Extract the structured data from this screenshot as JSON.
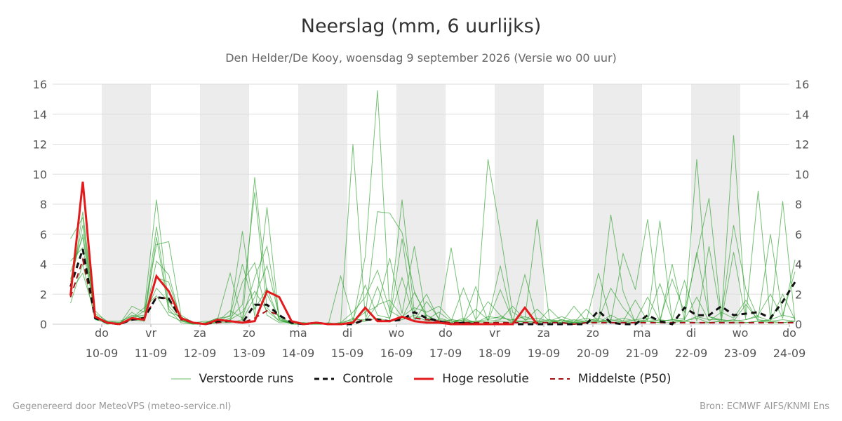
{
  "title": "Neerslag (mm, 6 uurlijks)",
  "subtitle": "Den Helder/De Kooy, woensdag  9 september 2026 (Versie wo 00 uur)",
  "footer": {
    "left": "Gegenereerd door MeteoVPS (meteo-service.nl)",
    "right": "Bron: ECMWF AIFS/KNMI Ens"
  },
  "legend": [
    {
      "label": "Verstoorde runs",
      "color": "#2ca02c",
      "style": "thin"
    },
    {
      "label": "Controle",
      "color": "#111111",
      "style": "dashed"
    },
    {
      "label": "Hoge resolutie",
      "color": "#e31a1c",
      "style": "solid"
    },
    {
      "label": "Middelste (P50)",
      "color": "#a50f15",
      "style": "dashed"
    }
  ],
  "chart_data": {
    "type": "line",
    "x_start": "2026-09-09 06:00",
    "x_step_hours": 6,
    "ylim": [
      0,
      16
    ],
    "yticks": [
      0,
      2,
      4,
      6,
      8,
      10,
      12,
      14,
      16
    ],
    "grid": true,
    "legend_position": "bottom",
    "x_tick_labels": [
      {
        "day": "do",
        "date": "10-09"
      },
      {
        "day": "vr",
        "date": "11-09"
      },
      {
        "day": "za",
        "date": "12-09"
      },
      {
        "day": "zo",
        "date": "13-09"
      },
      {
        "day": "ma",
        "date": "14-09"
      },
      {
        "day": "di",
        "date": "15-09"
      },
      {
        "day": "wo",
        "date": "16-09"
      },
      {
        "day": "do",
        "date": "17-09"
      },
      {
        "day": "vr",
        "date": "18-09"
      },
      {
        "day": "za",
        "date": "19-09"
      },
      {
        "day": "zo",
        "date": "20-09"
      },
      {
        "day": "ma",
        "date": "21-09"
      },
      {
        "day": "di",
        "date": "22-09"
      },
      {
        "day": "wo",
        "date": "23-09"
      },
      {
        "day": "do",
        "date": "24-09"
      }
    ],
    "shaded_weekday_bands": [
      "vr 11-09",
      "zo 13-09",
      "di 15-09",
      "do 17-09",
      "za 19-09",
      "ma 21-09",
      "wo 23-09"
    ],
    "series": [
      {
        "name": "Hoge resolutie",
        "color": "#e31a1c",
        "values": [
          1.9,
          9.5,
          0.5,
          0.1,
          0.0,
          0.4,
          0.3,
          3.2,
          2.2,
          0.4,
          0.1,
          0.0,
          0.3,
          0.2,
          0.1,
          0.2,
          2.2,
          1.8,
          0.2,
          0.0,
          0.1,
          0.0,
          0.0,
          0.1,
          1.1,
          0.2,
          0.2,
          0.5,
          0.2,
          0.1,
          0.1,
          0.0,
          0.0,
          0.0,
          0.0,
          0.0,
          0.0,
          1.1,
          0.0
        ]
      },
      {
        "name": "Controle",
        "color": "#111111",
        "values": [
          2.5,
          5.0,
          0.4,
          0.1,
          0.0,
          0.3,
          0.4,
          1.8,
          1.7,
          0.4,
          0.1,
          0.0,
          0.2,
          0.2,
          0.1,
          1.3,
          1.3,
          0.6,
          0.1,
          0.0,
          0.1,
          0.0,
          0.0,
          0.0,
          0.3,
          0.3,
          0.2,
          0.3,
          0.8,
          0.4,
          0.2,
          0.0,
          0.1,
          0.0,
          0.0,
          0.0,
          0.0,
          0.0,
          0.0,
          0.0,
          0.0,
          0.0,
          0.0,
          0.9,
          0.1,
          0.0,
          0.0,
          0.6,
          0.2,
          0.0,
          1.1,
          0.6,
          0.6,
          1.2,
          0.6,
          0.7,
          0.8,
          0.4,
          1.5,
          2.8,
          0.0,
          0.0,
          0.0
        ]
      },
      {
        "name": "Middelste (P50)",
        "color": "#a50f15",
        "values": [
          1.8,
          4.3,
          0.5,
          0.1,
          0.0,
          0.3,
          0.4,
          1.8,
          1.7,
          0.3,
          0.1,
          0.0,
          0.1,
          0.2,
          0.1,
          0.4,
          0.9,
          0.6,
          0.1,
          0.0,
          0.1,
          0.0,
          0.0,
          0.1,
          0.3,
          0.3,
          0.2,
          0.4,
          0.4,
          0.3,
          0.2,
          0.1,
          0.1,
          0.1,
          0.1,
          0.1,
          0.1,
          0.1,
          0.1,
          0.1,
          0.1,
          0.0,
          0.1,
          0.1,
          0.1,
          0.1,
          0.1,
          0.1,
          0.1,
          0.1,
          0.1,
          0.1,
          0.1,
          0.1,
          0.1,
          0.1,
          0.1,
          0.1,
          0.1,
          0.1,
          0.1,
          0.1,
          0.1
        ]
      },
      {
        "name": "Verstoorde runs",
        "color": "#2ca02c",
        "values": [
          2.1,
          7.5,
          0.6,
          0.1,
          0.0,
          0.3,
          0.9,
          8.3,
          1.2,
          0.3,
          0.0,
          0.1,
          0.4,
          3.4,
          0.2,
          9.8,
          2.0,
          0.4,
          0.1,
          0.0,
          0.1,
          0.0,
          0.1,
          12.0,
          0.5,
          7.5,
          7.4,
          6.1,
          2.2,
          0.4,
          0.2,
          0.1,
          0.3,
          0.1,
          11.0,
          6.1,
          0.8,
          0.3,
          7.0,
          0.3,
          0.1,
          0.2,
          0.1,
          0.2,
          7.3,
          2.2,
          0.1,
          0.3,
          6.9,
          0.2,
          0.3,
          11.0,
          0.5,
          0.3,
          12.6,
          0.5,
          8.9,
          0.3,
          8.2,
          0.2,
          5.5,
          5.3,
          0.5,
          8.9
        ]
      },
      {
        "name": "Verstoorde runs",
        "color": "#2ca02c",
        "values": [
          3.5,
          5.8,
          0.4,
          0.0,
          0.1,
          0.6,
          0.4,
          6.5,
          1.0,
          0.1,
          0.0,
          0.0,
          0.2,
          0.6,
          6.2,
          0.5,
          7.8,
          0.3,
          0.1,
          0.0,
          0.0,
          0.1,
          0.0,
          0.2,
          4.5,
          15.6,
          0.7,
          8.3,
          0.8,
          2.0,
          0.3,
          5.1,
          0.2,
          0.1,
          0.5,
          0.4,
          0.3,
          0.5,
          0.2,
          0.1,
          0.3,
          0.1,
          0.2,
          3.4,
          0.2,
          4.7,
          2.3,
          7.0,
          0.3,
          3.0,
          0.8,
          4.6,
          8.4,
          0.5,
          6.6,
          2.3,
          0.4,
          6.0,
          0.6,
          3.5,
          0.2,
          0.5,
          0.3
        ]
      },
      {
        "name": "Verstoorde runs",
        "color": "#2ca02c",
        "values": [
          2.8,
          6.6,
          0.5,
          0.1,
          0.0,
          1.2,
          0.8,
          5.3,
          5.5,
          0.6,
          0.1,
          0.0,
          0.1,
          0.4,
          1.3,
          8.8,
          1.1,
          0.2,
          0.1,
          0.0,
          0.0,
          0.0,
          3.2,
          0.3,
          0.3,
          2.5,
          0.3,
          5.7,
          0.2,
          1.5,
          0.4,
          0.2,
          0.1,
          0.2,
          0.3,
          3.9,
          0.2,
          0.2,
          0.1,
          1.0,
          0.2,
          0.1,
          0.2,
          0.3,
          2.4,
          1.1,
          0.2,
          0.3,
          2.7,
          0.3,
          0.4,
          4.8,
          0.5,
          0.2,
          4.8,
          0.3,
          0.6,
          2.0,
          0.4,
          4.3,
          0.3,
          0.2,
          2.8
        ]
      },
      {
        "name": "Verstoorde runs",
        "color": "#2ca02c",
        "values": [
          4.2,
          5.1,
          0.7,
          0.2,
          0.1,
          0.3,
          0.5,
          3.1,
          2.8,
          0.3,
          0.0,
          0.0,
          0.3,
          0.2,
          2.8,
          4.1,
          0.6,
          0.1,
          0.1,
          0.1,
          0.0,
          0.0,
          0.1,
          0.8,
          1.8,
          3.6,
          0.9,
          0.4,
          2.1,
          0.6,
          0.1,
          0.3,
          0.2,
          2.5,
          0.2,
          0.3,
          1.2,
          0.3,
          0.4,
          0.2,
          0.1,
          1.2,
          0.2,
          0.4,
          0.1,
          0.2,
          1.6,
          0.2,
          0.1,
          4.0,
          0.3,
          1.8,
          0.2,
          0.8,
          0.4,
          1.6,
          0.2,
          0.3,
          0.6,
          0.4,
          0.2,
          1.2,
          0.3
        ]
      },
      {
        "name": "Verstoorde runs",
        "color": "#2ca02c",
        "values": [
          1.4,
          4.0,
          0.3,
          0.1,
          0.0,
          0.4,
          1.1,
          1.9,
          0.6,
          0.2,
          0.0,
          0.1,
          0.2,
          0.9,
          0.4,
          3.1,
          5.2,
          0.4,
          0.0,
          0.0,
          0.0,
          0.0,
          0.0,
          0.2,
          0.8,
          1.2,
          4.4,
          0.7,
          5.2,
          0.3,
          0.8,
          0.2,
          2.4,
          0.3,
          1.5,
          0.6,
          0.1,
          3.3,
          0.2,
          0.1,
          0.3,
          0.1,
          1.0,
          0.2,
          0.2,
          0.4,
          0.2,
          1.8,
          0.2,
          0.3,
          2.9,
          0.2,
          5.2,
          0.3,
          0.2,
          1.3,
          0.3,
          0.2,
          2.0,
          0.3,
          0.2,
          0.4,
          0.2
        ]
      },
      {
        "name": "Verstoorde runs",
        "color": "#2ca02c",
        "values": [
          5.7,
          7.1,
          0.4,
          0.2,
          0.2,
          0.5,
          0.6,
          2.4,
          1.5,
          0.3,
          0.1,
          0.0,
          0.1,
          0.1,
          0.3,
          1.8,
          3.9,
          0.5,
          0.1,
          0.0,
          0.1,
          0.0,
          0.1,
          0.3,
          2.6,
          0.6,
          0.4,
          3.1,
          0.4,
          0.6,
          0.2,
          0.1,
          0.4,
          0.1,
          0.2,
          2.3,
          0.3,
          0.1,
          0.2,
          0.3,
          0.2,
          0.3,
          0.2,
          0.1,
          0.6,
          0.2,
          0.1,
          0.2,
          0.3,
          0.2,
          0.2,
          0.4,
          0.1,
          0.2,
          0.3,
          0.1,
          0.2,
          0.2,
          0.1,
          0.2,
          0.3,
          0.2,
          3.6
        ]
      },
      {
        "name": "Verstoorde runs",
        "color": "#2ca02c",
        "values": [
          2.2,
          3.4,
          0.6,
          0.0,
          0.1,
          0.3,
          0.2,
          4.2,
          3.3,
          0.2,
          0.1,
          0.2,
          0.1,
          0.3,
          0.8,
          2.2,
          0.9,
          0.2,
          0.1,
          0.1,
          0.0,
          0.0,
          0.0,
          0.1,
          0.2,
          0.4,
          0.2,
          0.3,
          0.6,
          0.2,
          0.3,
          0.2,
          0.1,
          0.2,
          0.1,
          0.2,
          0.1,
          0.2,
          0.1,
          0.2,
          0.1,
          0.1,
          0.1,
          0.2,
          0.1,
          0.1,
          0.1,
          0.2,
          0.1,
          0.1,
          0.2,
          0.1,
          0.1,
          0.2,
          0.1,
          0.1,
          0.2,
          0.1,
          0.1,
          0.2,
          0.1,
          0.1,
          0.2
        ]
      },
      {
        "name": "Verstoorde runs",
        "color": "#2ca02c",
        "values": [
          3.0,
          6.0,
          0.9,
          0.1,
          0.0,
          0.8,
          0.2,
          5.8,
          0.8,
          0.5,
          0.0,
          0.1,
          0.4,
          0.5,
          4.0,
          1.0,
          2.4,
          0.3,
          0.0,
          0.0,
          0.0,
          0.0,
          0.0,
          0.4,
          0.2,
          1.3,
          1.6,
          0.5,
          1.1,
          0.8,
          1.2,
          0.3,
          0.2,
          1.0,
          0.3,
          0.5,
          0.2,
          0.2,
          1.0,
          0.2,
          0.5,
          0.2,
          0.4,
          0.2,
          0.3,
          0.2,
          0.3,
          0.4,
          0.2,
          0.3,
          0.2,
          0.5,
          0.3,
          0.3,
          0.2,
          0.3,
          0.5,
          0.2,
          0.3,
          0.2,
          0.3,
          0.3,
          0.2
        ]
      }
    ]
  }
}
